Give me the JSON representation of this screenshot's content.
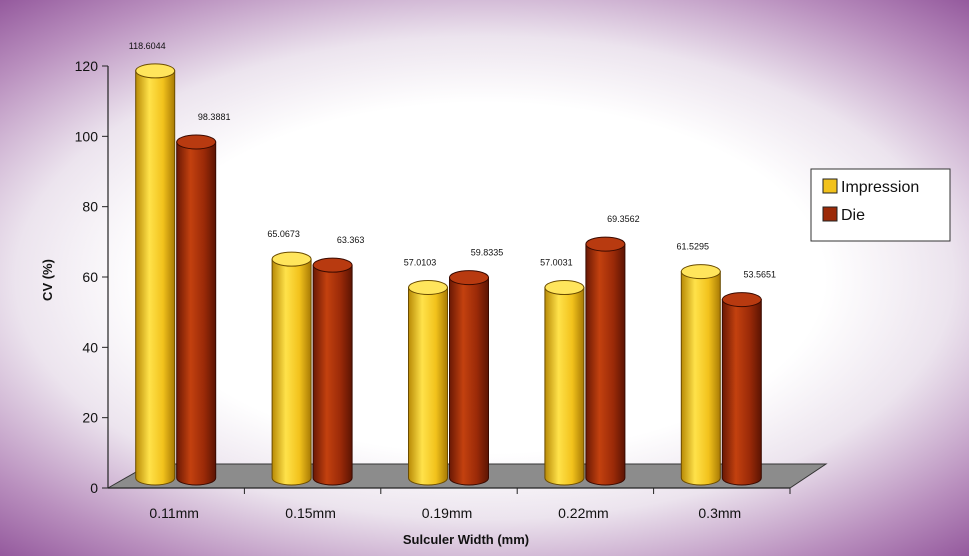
{
  "chart_data": {
    "type": "bar",
    "title": "",
    "xlabel": "Sulculer Width (mm)",
    "ylabel": "CV (%)",
    "ylim": [
      0,
      120
    ],
    "yticks": [
      0,
      20,
      40,
      60,
      80,
      100,
      120
    ],
    "categories": [
      "0.11mm",
      "0.15mm",
      "0.19mm",
      "0.22mm",
      "0.3mm"
    ],
    "series": [
      {
        "name": "Impression",
        "color": "#f2c21c",
        "values": [
          118.6044,
          65.0673,
          57.0103,
          57.0031,
          61.5295
        ],
        "labels": [
          "118.6044",
          "65.0673",
          "57.0103",
          "57.0031",
          "61.5295"
        ]
      },
      {
        "name": "Die",
        "color": "#9b2a08",
        "values": [
          98.3881,
          63.363,
          59.8335,
          69.3562,
          53.5651
        ],
        "labels": [
          "98.3881",
          "63.363",
          "59.8335",
          "69.3562",
          "53.5651"
        ]
      }
    ],
    "legend_position": "right",
    "grid": false,
    "style": "3d-cylinder"
  }
}
